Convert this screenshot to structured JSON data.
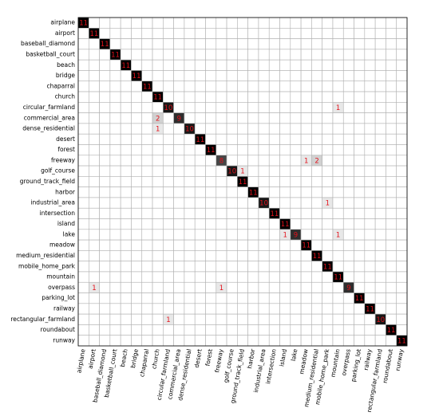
{
  "chart_data": {
    "type": "heatmap",
    "x_categories": [
      "airplane",
      "airport",
      "baseball_diamond",
      "basketball_court",
      "beach",
      "bridge",
      "chaparral",
      "church",
      "circular_farmland",
      "commercial_area",
      "dense_residential",
      "desert",
      "forest",
      "freeway",
      "golf_course",
      "ground_track_field",
      "harbor",
      "industrial_area",
      "intersection",
      "island",
      "lake",
      "meadow",
      "medium_residential",
      "mobile_home_park",
      "mountain",
      "overpass",
      "parking_lot",
      "railway",
      "rectangular_farmland",
      "roundabout",
      "runway"
    ],
    "y_categories": [
      "airplane",
      "airport",
      "baseball_diamond",
      "basketball_court",
      "beach",
      "bridge",
      "chaparral",
      "church",
      "circular_farmland",
      "commercial_area",
      "dense_residential",
      "desert",
      "forest",
      "freeway",
      "golf_course",
      "ground_track_field",
      "harbor",
      "industrial_area",
      "intersection",
      "island",
      "lake",
      "meadow",
      "medium_residential",
      "mobile_home_park",
      "mountain",
      "overpass",
      "parking_lot",
      "railway",
      "rectangular_farmland",
      "roundabout",
      "runway"
    ],
    "values": [
      [
        11,
        0,
        0,
        0,
        0,
        0,
        0,
        0,
        0,
        0,
        0,
        0,
        0,
        0,
        0,
        0,
        0,
        0,
        0,
        0,
        0,
        0,
        0,
        0,
        0,
        0,
        0,
        0,
        0,
        0,
        0
      ],
      [
        0,
        11,
        0,
        0,
        0,
        0,
        0,
        0,
        0,
        0,
        0,
        0,
        0,
        0,
        0,
        0,
        0,
        0,
        0,
        0,
        0,
        0,
        0,
        0,
        0,
        0,
        0,
        0,
        0,
        0,
        0
      ],
      [
        0,
        0,
        11,
        0,
        0,
        0,
        0,
        0,
        0,
        0,
        0,
        0,
        0,
        0,
        0,
        0,
        0,
        0,
        0,
        0,
        0,
        0,
        0,
        0,
        0,
        0,
        0,
        0,
        0,
        0,
        0
      ],
      [
        0,
        0,
        0,
        11,
        0,
        0,
        0,
        0,
        0,
        0,
        0,
        0,
        0,
        0,
        0,
        0,
        0,
        0,
        0,
        0,
        0,
        0,
        0,
        0,
        0,
        0,
        0,
        0,
        0,
        0,
        0
      ],
      [
        0,
        0,
        0,
        0,
        11,
        0,
        0,
        0,
        0,
        0,
        0,
        0,
        0,
        0,
        0,
        0,
        0,
        0,
        0,
        0,
        0,
        0,
        0,
        0,
        0,
        0,
        0,
        0,
        0,
        0,
        0
      ],
      [
        0,
        0,
        0,
        0,
        0,
        11,
        0,
        0,
        0,
        0,
        0,
        0,
        0,
        0,
        0,
        0,
        0,
        0,
        0,
        0,
        0,
        0,
        0,
        0,
        0,
        0,
        0,
        0,
        0,
        0,
        0
      ],
      [
        0,
        0,
        0,
        0,
        0,
        0,
        11,
        0,
        0,
        0,
        0,
        0,
        0,
        0,
        0,
        0,
        0,
        0,
        0,
        0,
        0,
        0,
        0,
        0,
        0,
        0,
        0,
        0,
        0,
        0,
        0
      ],
      [
        0,
        0,
        0,
        0,
        0,
        0,
        0,
        11,
        0,
        0,
        0,
        0,
        0,
        0,
        0,
        0,
        0,
        0,
        0,
        0,
        0,
        0,
        0,
        0,
        0,
        0,
        0,
        0,
        0,
        0,
        0
      ],
      [
        0,
        0,
        0,
        0,
        0,
        0,
        0,
        0,
        10,
        0,
        0,
        0,
        0,
        0,
        0,
        0,
        0,
        0,
        0,
        0,
        0,
        0,
        0,
        0,
        1,
        0,
        0,
        0,
        0,
        0,
        0
      ],
      [
        0,
        0,
        0,
        0,
        0,
        0,
        0,
        2,
        0,
        9,
        0,
        0,
        0,
        0,
        0,
        0,
        0,
        0,
        0,
        0,
        0,
        0,
        0,
        0,
        0,
        0,
        0,
        0,
        0,
        0,
        0
      ],
      [
        0,
        0,
        0,
        0,
        0,
        0,
        0,
        1,
        0,
        0,
        10,
        0,
        0,
        0,
        0,
        0,
        0,
        0,
        0,
        0,
        0,
        0,
        0,
        0,
        0,
        0,
        0,
        0,
        0,
        0,
        0
      ],
      [
        0,
        0,
        0,
        0,
        0,
        0,
        0,
        0,
        0,
        0,
        0,
        11,
        0,
        0,
        0,
        0,
        0,
        0,
        0,
        0,
        0,
        0,
        0,
        0,
        0,
        0,
        0,
        0,
        0,
        0,
        0
      ],
      [
        0,
        0,
        0,
        0,
        0,
        0,
        0,
        0,
        0,
        0,
        0,
        0,
        11,
        0,
        0,
        0,
        0,
        0,
        0,
        0,
        0,
        0,
        0,
        0,
        0,
        0,
        0,
        0,
        0,
        0,
        0
      ],
      [
        0,
        0,
        0,
        0,
        0,
        0,
        0,
        0,
        0,
        0,
        0,
        0,
        0,
        8,
        0,
        0,
        0,
        0,
        0,
        0,
        0,
        1,
        2,
        0,
        0,
        0,
        0,
        0,
        0,
        0,
        0
      ],
      [
        0,
        0,
        0,
        0,
        0,
        0,
        0,
        0,
        0,
        0,
        0,
        0,
        0,
        0,
        10,
        1,
        0,
        0,
        0,
        0,
        0,
        0,
        0,
        0,
        0,
        0,
        0,
        0,
        0,
        0,
        0
      ],
      [
        0,
        0,
        0,
        0,
        0,
        0,
        0,
        0,
        0,
        0,
        0,
        0,
        0,
        0,
        0,
        11,
        0,
        0,
        0,
        0,
        0,
        0,
        0,
        0,
        0,
        0,
        0,
        0,
        0,
        0,
        0
      ],
      [
        0,
        0,
        0,
        0,
        0,
        0,
        0,
        0,
        0,
        0,
        0,
        0,
        0,
        0,
        0,
        0,
        11,
        0,
        0,
        0,
        0,
        0,
        0,
        0,
        0,
        0,
        0,
        0,
        0,
        0,
        0
      ],
      [
        0,
        0,
        0,
        0,
        0,
        0,
        0,
        0,
        0,
        0,
        0,
        0,
        0,
        0,
        0,
        0,
        0,
        10,
        0,
        0,
        0,
        0,
        0,
        1,
        0,
        0,
        0,
        0,
        0,
        0,
        0
      ],
      [
        0,
        0,
        0,
        0,
        0,
        0,
        0,
        0,
        0,
        0,
        0,
        0,
        0,
        0,
        0,
        0,
        0,
        0,
        11,
        0,
        0,
        0,
        0,
        0,
        0,
        0,
        0,
        0,
        0,
        0,
        0
      ],
      [
        0,
        0,
        0,
        0,
        0,
        0,
        0,
        0,
        0,
        0,
        0,
        0,
        0,
        0,
        0,
        0,
        0,
        0,
        0,
        11,
        0,
        0,
        0,
        0,
        0,
        0,
        0,
        0,
        0,
        0,
        0
      ],
      [
        0,
        0,
        0,
        0,
        0,
        0,
        0,
        0,
        0,
        0,
        0,
        0,
        0,
        0,
        0,
        0,
        0,
        0,
        0,
        1,
        9,
        0,
        0,
        0,
        1,
        0,
        0,
        0,
        0,
        0,
        0
      ],
      [
        0,
        0,
        0,
        0,
        0,
        0,
        0,
        0,
        0,
        0,
        0,
        0,
        0,
        0,
        0,
        0,
        0,
        0,
        0,
        0,
        0,
        11,
        0,
        0,
        0,
        0,
        0,
        0,
        0,
        0,
        0
      ],
      [
        0,
        0,
        0,
        0,
        0,
        0,
        0,
        0,
        0,
        0,
        0,
        0,
        0,
        0,
        0,
        0,
        0,
        0,
        0,
        0,
        0,
        0,
        11,
        0,
        0,
        0,
        0,
        0,
        0,
        0,
        0
      ],
      [
        0,
        0,
        0,
        0,
        0,
        0,
        0,
        0,
        0,
        0,
        0,
        0,
        0,
        0,
        0,
        0,
        0,
        0,
        0,
        0,
        0,
        0,
        0,
        11,
        0,
        0,
        0,
        0,
        0,
        0,
        0
      ],
      [
        0,
        0,
        0,
        0,
        0,
        0,
        0,
        0,
        0,
        0,
        0,
        0,
        0,
        0,
        0,
        0,
        0,
        0,
        0,
        0,
        0,
        0,
        0,
        0,
        11,
        0,
        0,
        0,
        0,
        0,
        0
      ],
      [
        0,
        1,
        0,
        0,
        0,
        0,
        0,
        0,
        0,
        0,
        0,
        0,
        0,
        1,
        0,
        0,
        0,
        0,
        0,
        0,
        0,
        0,
        0,
        0,
        0,
        9,
        0,
        0,
        0,
        0,
        0
      ],
      [
        0,
        0,
        0,
        0,
        0,
        0,
        0,
        0,
        0,
        0,
        0,
        0,
        0,
        0,
        0,
        0,
        0,
        0,
        0,
        0,
        0,
        0,
        0,
        0,
        0,
        0,
        11,
        0,
        0,
        0,
        0
      ],
      [
        0,
        0,
        0,
        0,
        0,
        0,
        0,
        0,
        0,
        0,
        0,
        0,
        0,
        0,
        0,
        0,
        0,
        0,
        0,
        0,
        0,
        0,
        0,
        0,
        0,
        0,
        0,
        11,
        0,
        0,
        0
      ],
      [
        0,
        0,
        0,
        0,
        0,
        0,
        0,
        0,
        1,
        0,
        0,
        0,
        0,
        0,
        0,
        0,
        0,
        0,
        0,
        0,
        0,
        0,
        0,
        0,
        0,
        0,
        0,
        0,
        10,
        0,
        0
      ],
      [
        0,
        0,
        0,
        0,
        0,
        0,
        0,
        0,
        0,
        0,
        0,
        0,
        0,
        0,
        0,
        0,
        0,
        0,
        0,
        0,
        0,
        0,
        0,
        0,
        0,
        0,
        0,
        0,
        0,
        11,
        0
      ],
      [
        0,
        0,
        0,
        0,
        0,
        0,
        0,
        0,
        0,
        0,
        0,
        0,
        0,
        0,
        0,
        0,
        0,
        0,
        0,
        0,
        0,
        0,
        0,
        0,
        0,
        0,
        0,
        0,
        0,
        0,
        11
      ]
    ],
    "colors": [
      "#ffffff",
      "#000000"
    ],
    "text_color": "#e3121b"
  }
}
